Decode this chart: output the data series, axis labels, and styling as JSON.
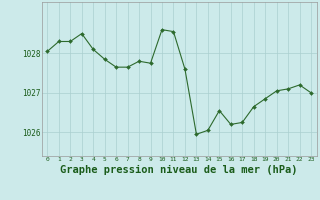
{
  "x": [
    0,
    1,
    2,
    3,
    4,
    5,
    6,
    7,
    8,
    9,
    10,
    11,
    12,
    13,
    14,
    15,
    16,
    17,
    18,
    19,
    20,
    21,
    22,
    23
  ],
  "y": [
    1028.05,
    1028.3,
    1028.3,
    1028.5,
    1028.1,
    1027.85,
    1027.65,
    1027.65,
    1027.8,
    1027.75,
    1028.6,
    1028.55,
    1027.6,
    1025.95,
    1026.05,
    1026.55,
    1026.2,
    1026.25,
    1026.65,
    1026.85,
    1027.05,
    1027.1,
    1027.2,
    1027.0
  ],
  "line_color": "#2d6a2d",
  "marker": "D",
  "marker_size": 2.0,
  "bg_color": "#cceaea",
  "grid_color": "#aacfcf",
  "xlabel": "Graphe pression niveau de la mer (hPa)",
  "xlabel_fontsize": 7.5,
  "tick_color": "#1a5c1a",
  "yticks": [
    1026,
    1027,
    1028
  ],
  "ylim": [
    1025.4,
    1029.3
  ],
  "xlim": [
    -0.5,
    23.5
  ],
  "xticks": [
    0,
    1,
    2,
    3,
    4,
    5,
    6,
    7,
    8,
    9,
    10,
    11,
    12,
    13,
    14,
    15,
    16,
    17,
    18,
    19,
    20,
    21,
    22,
    23
  ],
  "xtick_labels": [
    "0",
    "1",
    "2",
    "3",
    "4",
    "5",
    "6",
    "7",
    "8",
    "9",
    "10",
    "11",
    "12",
    "13",
    "14",
    "15",
    "16",
    "17",
    "18",
    "19",
    "20",
    "21",
    "22",
    "23"
  ]
}
